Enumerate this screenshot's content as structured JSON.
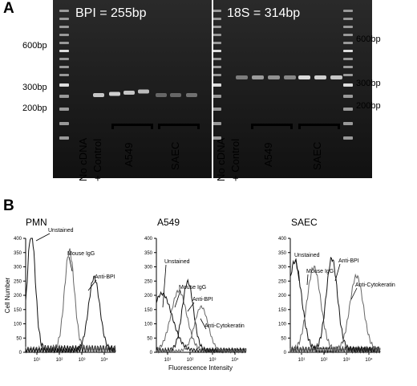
{
  "panelA": {
    "letter": "A",
    "left_gel": {
      "title": "BPI = 255bp",
      "ladder_labels": [
        "600bp",
        "300bp",
        "200bp"
      ],
      "lane_labels": [
        "No cDNA",
        "+ Control"
      ],
      "group_labels": [
        "A549",
        "SAEC"
      ]
    },
    "right_gel": {
      "title": "18S = 314bp",
      "ladder_labels": [
        "600bp",
        "300bp",
        "200bp"
      ],
      "lane_labels": [
        "No cDNA",
        "+ Control"
      ],
      "group_labels": [
        "A549",
        "SAEC"
      ]
    }
  },
  "panelB": {
    "letter": "B",
    "y_axis_label": "Cell Number",
    "x_axis_label": "Fluorescence Intensity",
    "y_ticks": [
      "0",
      "50",
      "100",
      "150",
      "200",
      "250",
      "300",
      "350",
      "400"
    ],
    "x_ticks": [
      "10¹",
      "10²",
      "10³",
      "10⁴"
    ],
    "histograms": [
      {
        "title": "PMN",
        "annotations": [
          "Unstained",
          "Mouse IgG",
          "Anti-BPI"
        ]
      },
      {
        "title": "A549",
        "annotations": [
          "Unstained",
          "Mouse IgG",
          "Anti-BPI",
          "Anti-Cytokeratin"
        ]
      },
      {
        "title": "SAEC",
        "annotations": [
          "Unstained",
          "Mouse IgG",
          "Anti-BPI",
          "Anti-Cytokeratin"
        ]
      }
    ]
  }
}
